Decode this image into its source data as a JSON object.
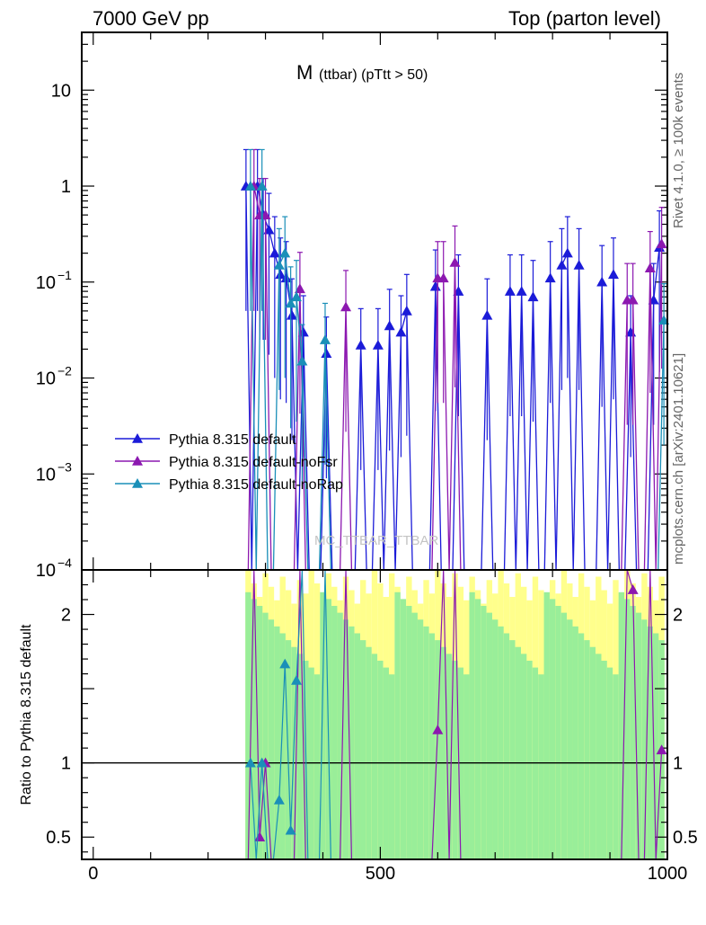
{
  "header": {
    "left": "7000 GeV pp",
    "right": "Top (parton level)"
  },
  "side_text": {
    "version": "Rivet 4.1.0, ≥ 100k events",
    "site": "mcplots.cern.ch [arXiv:2401.10621]"
  },
  "watermark": "MC_TTBAR_TTBAR",
  "chart_data": {
    "type": "line",
    "title": "M (ttbar) (pTtt > 50)",
    "title_main": "M",
    "title_sub": "(ttbar) (pTtt > 50)",
    "xlabel": "",
    "ylabel_ratio": "Ratio to Pythia 8.315 default",
    "xlim": [
      -20,
      1000
    ],
    "ylim_main": [
      0.0001,
      40
    ],
    "ylim_ratio": [
      0.35,
      2.3
    ],
    "yscale_main": "log",
    "x_ticks": [
      0,
      500,
      1000
    ],
    "x_tick_labels": [
      "0",
      "500",
      "1000"
    ],
    "main_y_ticks": [
      {
        "value": 10,
        "base": "10",
        "exp": ""
      },
      {
        "value": 1,
        "base": "1",
        "exp": ""
      },
      {
        "value": 0.1,
        "base": "10",
        "exp": "−1"
      },
      {
        "value": 0.01,
        "base": "10",
        "exp": "−2"
      },
      {
        "value": 0.001,
        "base": "10",
        "exp": "−3"
      },
      {
        "value": 0.0001,
        "base": "10",
        "exp": "−4"
      }
    ],
    "ratio_y_ticks": [
      {
        "value": 2,
        "label": "2"
      },
      {
        "value": 1,
        "label": "1"
      },
      {
        "value": 0.5,
        "label": "0.5"
      }
    ],
    "legend": {
      "placement": "lower-left"
    },
    "series": [
      {
        "name": "Pythia 8.315 default",
        "color": "#1b1bd8",
        "marker": "triangle-up",
        "x": [
          270,
          280,
          290,
          300,
          310,
          320,
          330,
          340,
          350,
          360,
          370,
          380,
          390,
          400,
          410,
          420,
          430,
          440,
          450,
          460,
          470,
          480,
          490,
          500,
          510,
          520,
          530,
          540,
          550,
          560,
          570,
          580,
          590,
          600,
          610,
          620,
          630,
          640,
          650,
          660,
          670,
          680,
          690,
          700,
          710,
          720,
          730,
          740,
          750,
          760,
          770,
          780,
          790,
          800,
          810,
          820,
          830,
          840,
          850,
          860,
          870,
          880,
          890,
          900,
          910,
          920,
          930,
          940,
          950,
          960,
          970,
          980,
          990
        ],
        "y": [
          1.0,
          0.0001,
          1.0,
          0.5,
          0.35,
          0.2,
          0.12,
          0.11,
          0.045,
          0.0001,
          0.03,
          0.0001,
          0.0001,
          0.0001,
          0.018,
          0.0001,
          0.0001,
          0.0001,
          0.0001,
          0.0001,
          0.022,
          0.0001,
          0.0001,
          0.022,
          0.0001,
          0.035,
          0.0001,
          0.03,
          0.05,
          0.0001,
          0.0001,
          0.0001,
          0.0001,
          0.09,
          0.0001,
          0.0001,
          0.0001,
          0.08,
          0.0001,
          0.0001,
          0.0001,
          0.0001,
          0.045,
          0.0001,
          0.0001,
          0.0001,
          0.08,
          0.0001,
          0.08,
          0.0001,
          0.07,
          0.0001,
          0.0001,
          0.11,
          0.0001,
          0.15,
          0.2,
          0.0001,
          0.15,
          0.0001,
          0.0001,
          0.0001,
          0.1,
          0.0001,
          0.12,
          0.0001,
          0.0001,
          0.03,
          0.0001,
          0.0001,
          0.0001,
          0.065,
          0.23
        ]
      },
      {
        "name": "Pythia 8.315 default-noFsr",
        "color": "#8c18b0",
        "marker": "triangle-up",
        "x": [
          270,
          280,
          290,
          300,
          310,
          320,
          330,
          340,
          350,
          360,
          370,
          380,
          390,
          400,
          410,
          420,
          430,
          440,
          450,
          460,
          470,
          480,
          490,
          500,
          510,
          520,
          530,
          540,
          550,
          560,
          570,
          580,
          590,
          600,
          610,
          620,
          630,
          640,
          650,
          660,
          670,
          680,
          690,
          700,
          710,
          720,
          730,
          740,
          750,
          760,
          770,
          780,
          790,
          800,
          810,
          820,
          830,
          840,
          850,
          860,
          870,
          880,
          890,
          900,
          910,
          920,
          930,
          940,
          950,
          960,
          970,
          980,
          990
        ],
        "y": [
          0.0001,
          1.0,
          0.5,
          0.5,
          0.0001,
          0.0001,
          0.0001,
          0.0001,
          0.0001,
          0.085,
          0.0001,
          0.0001,
          0.0001,
          0.0001,
          0.0001,
          0.0001,
          0.0001,
          0.055,
          0.0001,
          0.0001,
          0.0001,
          0.0001,
          0.0001,
          0.0001,
          0.0001,
          0.0001,
          0.0001,
          0.0001,
          0.0001,
          0.0001,
          0.0001,
          0.0001,
          0.0001,
          0.11,
          0.11,
          0.0001,
          0.16,
          0.0001,
          0.0001,
          0.0001,
          0.0001,
          0.0001,
          0.0001,
          0.0001,
          0.0001,
          0.0001,
          0.0001,
          0.0001,
          0.0001,
          0.0001,
          0.0001,
          0.0001,
          0.0001,
          0.0001,
          0.0001,
          0.0001,
          0.0001,
          0.0001,
          0.0001,
          0.0001,
          0.0001,
          0.0001,
          0.0001,
          0.0001,
          0.0001,
          0.0001,
          0.065,
          0.065,
          0.0001,
          0.0001,
          0.14,
          0.0001,
          0.25
        ]
      },
      {
        "name": "Pythia 8.315 default-noRap",
        "color": "#1a8fb8",
        "marker": "triangle-up",
        "x": [
          270,
          280,
          290,
          300,
          310,
          320,
          330,
          340,
          350,
          360,
          370,
          380,
          390,
          400,
          410,
          420,
          430,
          440,
          450,
          460,
          470,
          480,
          490,
          500,
          510,
          520,
          530,
          540,
          550,
          560,
          570,
          580,
          590,
          600,
          610,
          620,
          630,
          640,
          650,
          660,
          670,
          680,
          690,
          700,
          710,
          720,
          730,
          740,
          750,
          760,
          770,
          780,
          790,
          800,
          810,
          820,
          830,
          840,
          850,
          860,
          870,
          880,
          890,
          900,
          910,
          920,
          930,
          940,
          950,
          960,
          970,
          980,
          990
        ],
        "y": [
          1.0,
          0.0001,
          1.0,
          0.0001,
          0.0001,
          0.15,
          0.2,
          0.06,
          0.07,
          0.015,
          0.0001,
          0.0001,
          0.0001,
          0.025,
          0.0001,
          0.0001,
          0.0001,
          0.0001,
          0.0001,
          0.0001,
          0.0001,
          0.0001,
          0.0001,
          0.0001,
          0.0001,
          0.0001,
          0.0001,
          0.0001,
          0.0001,
          0.0001,
          0.0001,
          0.0001,
          0.0001,
          0.0001,
          0.0001,
          0.0001,
          0.0001,
          0.0001,
          0.0001,
          0.0001,
          0.0001,
          0.0001,
          0.0001,
          0.0001,
          0.0001,
          0.0001,
          0.0001,
          0.0001,
          0.0001,
          0.0001,
          0.0001,
          0.0001,
          0.0001,
          0.0001,
          0.0001,
          0.0001,
          0.0001,
          0.0001,
          0.0001,
          0.0001,
          0.0001,
          0.0001,
          0.0001,
          0.0001,
          0.0001,
          0.0001,
          0.0001,
          0.0001,
          0.0001,
          0.0001,
          0.0001,
          0.0001,
          0.04
        ]
      }
    ]
  }
}
